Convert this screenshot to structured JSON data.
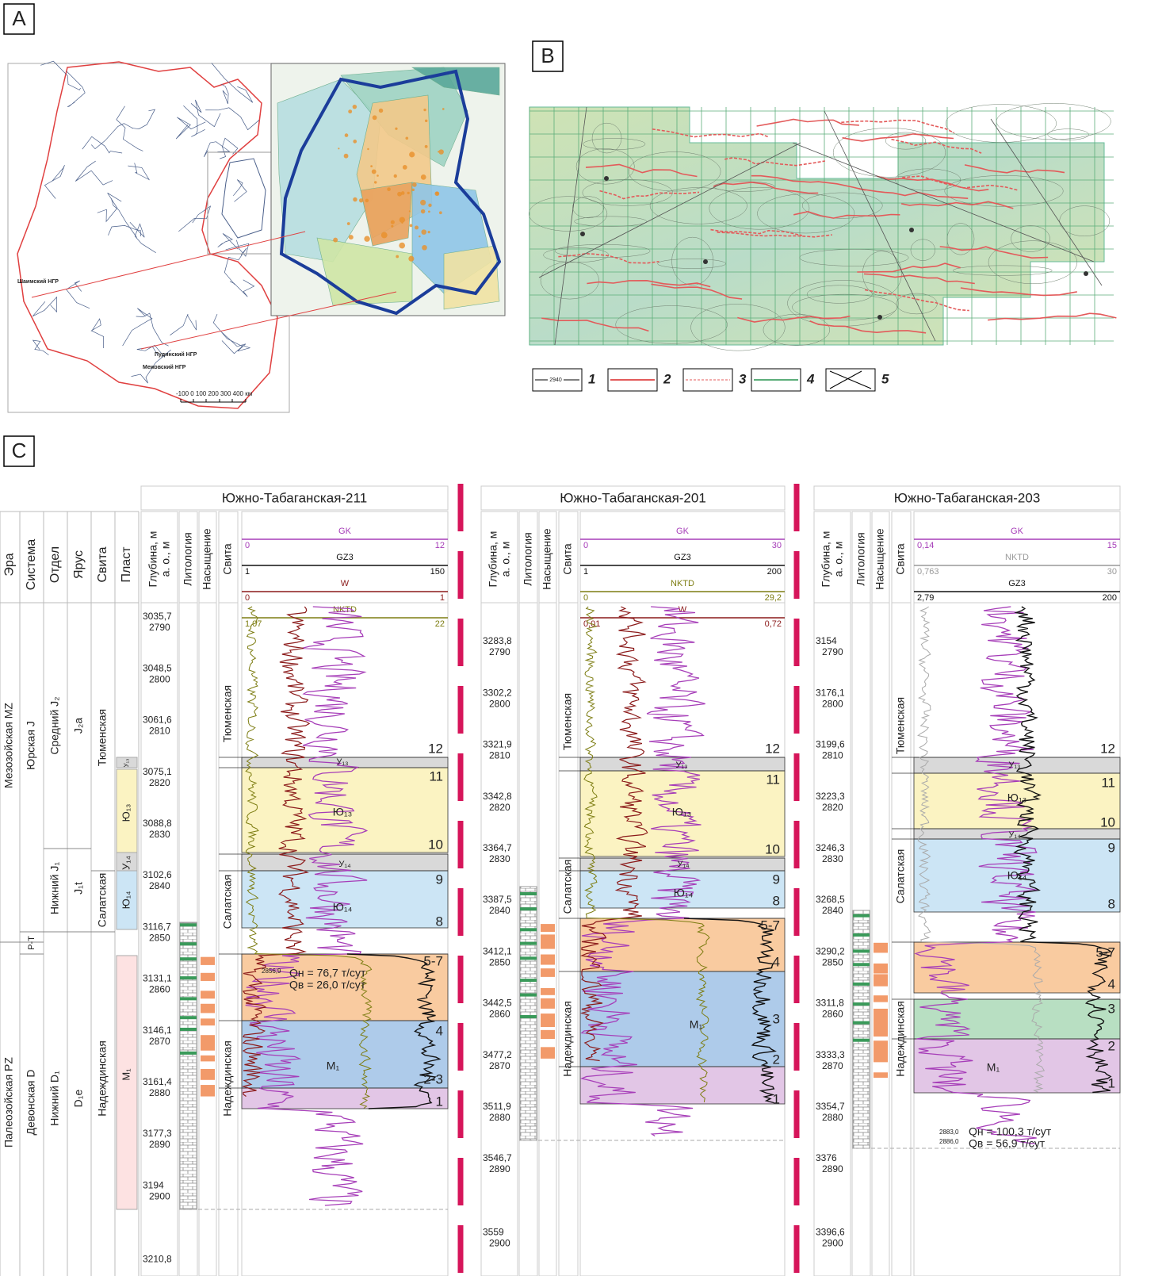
{
  "panel_labels": [
    "A",
    "B",
    "C"
  ],
  "map_a": {
    "labels": [
      "Шаимский НГР",
      "Пудинский НГР",
      "Межовский НГР"
    ],
    "scale": "-100 0 100 200 300 400 км"
  },
  "map_b": {
    "legend_sample": "2940",
    "legend": [
      "1",
      "2",
      "3",
      "4",
      "5"
    ]
  },
  "section": {
    "headers": [
      "Эра",
      "Система",
      "Отдел",
      "Ярус",
      "Свита",
      "Пласт"
    ],
    "era": [
      "Мезозойская MZ",
      "Палеозойская PZ"
    ],
    "system": [
      "Юрская J",
      "P-T",
      "Девонская D"
    ],
    "series": [
      "Средний J₂",
      "Нижний J₁",
      "Нижний D₁"
    ],
    "stage": [
      "J₂a",
      "J₁t",
      "D₁e"
    ],
    "suite": [
      "Тюменская",
      "Салатская",
      "Надеждинская"
    ],
    "layers": [
      "У₁₃",
      "Ю₁₃",
      "У₁₄",
      "Ю₁₄",
      "М₁"
    ]
  },
  "wells": [
    {
      "name": "Южно-Табаганская-211",
      "columns": [
        "Глубина, м",
        "а. о., м",
        "Литология",
        "Насыщение",
        "Свита"
      ],
      "curves": [
        {
          "name": "GK",
          "min": "0",
          "max": "12",
          "color": "#a63db8"
        },
        {
          "name": "GZ3",
          "min": "1",
          "max": "150",
          "color": "#111111"
        },
        {
          "name": "W",
          "min": "0",
          "max": "1",
          "color": "#8b1a1a"
        },
        {
          "name": "NKTD",
          "min": "1,07",
          "max": "22",
          "color": "#7d7d12"
        }
      ],
      "depths": [
        [
          "3035,7",
          "2790"
        ],
        [
          "3048,5",
          "2800"
        ],
        [
          "3061,6",
          "2810"
        ],
        [
          "3075,1",
          "2820"
        ],
        [
          "3088,8",
          "2830"
        ],
        [
          "3102,6",
          "2840"
        ],
        [
          "3116,7",
          "2850"
        ],
        [
          "3131,1",
          "2860"
        ],
        [
          "3146,1",
          "2870"
        ],
        [
          "3161,4",
          "2880"
        ],
        [
          "3177,3",
          "2890"
        ],
        [
          "3194",
          "2900"
        ],
        [
          "3210,8"
        ]
      ],
      "suite": [
        "Тюменская",
        "Салатская",
        "Надеждинская"
      ],
      "cycles": [
        "12",
        "11",
        "10",
        "9",
        "8",
        "5-7",
        "4",
        "2-3",
        "1"
      ],
      "layers": [
        "У₁₃",
        "Ю₁₃",
        "У₁₄",
        "Ю₁₄",
        "М₁"
      ],
      "test": {
        "depths": [
          "2856,9"
        ],
        "lines": [
          "Qн = 76,7 т/сут",
          "Qв = 26,0 т/сут"
        ]
      }
    },
    {
      "name": "Южно-Табаганская-201",
      "columns": [
        "Глубина, м",
        "а. о., м",
        "Литология",
        "Насыщение",
        "Свита"
      ],
      "curves": [
        {
          "name": "GK",
          "min": "0",
          "max": "30",
          "color": "#a63db8"
        },
        {
          "name": "GZ3",
          "min": "1",
          "max": "200",
          "color": "#111111"
        },
        {
          "name": "NKTD",
          "min": "0",
          "max": "29,2",
          "color": "#7d7d12"
        },
        {
          "name": "W",
          "min": "0,01",
          "max": "0,72",
          "color": "#8b1a1a"
        }
      ],
      "depths": [
        [
          "3283,8",
          "2790"
        ],
        [
          "3302,2",
          "2800"
        ],
        [
          "3321,9",
          "2810"
        ],
        [
          "3342,8",
          "2820"
        ],
        [
          "3364,7",
          "2830"
        ],
        [
          "3387,5",
          "2840"
        ],
        [
          "3412,1",
          "2850"
        ],
        [
          "3442,5",
          "2860"
        ],
        [
          "3477,2",
          "2870"
        ],
        [
          "3511,9",
          "2880"
        ],
        [
          "3546,7",
          "2890"
        ],
        [
          "3559",
          "2900"
        ]
      ],
      "suite": [
        "Тюменская",
        "Салатская",
        "Надеждинская"
      ],
      "cycles": [
        "12",
        "11",
        "10",
        "9",
        "8",
        "5-7",
        "4",
        "3",
        "2",
        "1"
      ],
      "layers": [
        "У₁₃",
        "Ю₁₃",
        "У₁₄",
        "Ю₁₄",
        "М₁"
      ]
    },
    {
      "name": "Южно-Табаганская-203",
      "columns": [
        "Глубина, м",
        "а. о., м",
        "Литология",
        "Насыщение",
        "Свита"
      ],
      "curves": [
        {
          "name": "GK",
          "min": "0,14",
          "max": "15",
          "color": "#a63db8"
        },
        {
          "name": "NKTD",
          "min": "0,763",
          "max": "30",
          "color": "#999999"
        },
        {
          "name": "GZ3",
          "min": "2,79",
          "max": "200",
          "color": "#111111"
        }
      ],
      "depths": [
        [
          "3154",
          "2790"
        ],
        [
          "3176,1",
          "2800"
        ],
        [
          "3199,6",
          "2810"
        ],
        [
          "3223,3",
          "2820"
        ],
        [
          "3246,3",
          "2830"
        ],
        [
          "3268,5",
          "2840"
        ],
        [
          "3290,2",
          "2850"
        ],
        [
          "3311,8",
          "2860"
        ],
        [
          "3333,3",
          "2870"
        ],
        [
          "3354,7",
          "2880"
        ],
        [
          "3376",
          "2890"
        ],
        [
          "3396,6",
          "2900"
        ]
      ],
      "suite": [
        "Тюменская",
        "Салатская",
        "Надеждинская"
      ],
      "cycles": [
        "12",
        "11",
        "10",
        "9",
        "8",
        "5-7",
        "4",
        "3",
        "2",
        "1"
      ],
      "layers": [
        "У₁₃",
        "Ю₁₃",
        "У₁₄",
        "Ю₁₄",
        "М₁"
      ],
      "test": {
        "depths": [
          "2883,0",
          "2886,0"
        ],
        "lines": [
          "Qн = 100,3 т/сут",
          "Qв = 56,9 т/сут"
        ]
      }
    }
  ]
}
